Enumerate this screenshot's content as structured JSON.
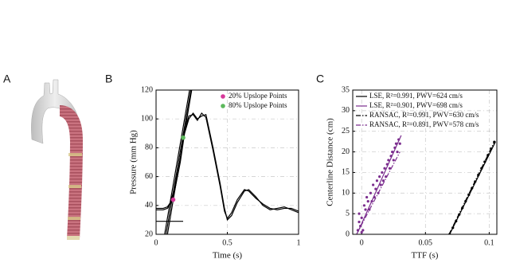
{
  "panels": [
    "A",
    "B",
    "C"
  ],
  "chart_data": [
    {
      "type": "line",
      "x_label": "Time (s)",
      "y_label": "Pressure (mm Hg)",
      "xlim": [
        0,
        1
      ],
      "xticks": [
        0,
        0.5,
        1
      ],
      "ylim": [
        20,
        120
      ],
      "yticks": [
        20,
        40,
        60,
        80,
        100,
        120
      ],
      "grid": true,
      "legend": "upper right",
      "lines": [
        {
          "color": "#000000",
          "x": [
            0,
            0.05,
            0.08,
            0.1,
            0.13,
            0.17,
            0.2,
            0.23,
            0.26,
            0.29,
            0.32,
            0.35,
            0.4,
            0.45,
            0.48,
            0.5,
            0.53,
            0.57,
            0.62,
            0.65,
            0.7,
            0.75,
            0.8,
            0.85,
            0.9,
            0.95,
            1
          ],
          "values": [
            37,
            37,
            38,
            41,
            50,
            70,
            90,
            100,
            104,
            100,
            102,
            103,
            80,
            55,
            38,
            30,
            33,
            42,
            50,
            51,
            46,
            40,
            37,
            38,
            39,
            37,
            35
          ]
        },
        {
          "color": "#000000",
          "x": [
            0,
            0.05,
            0.08,
            0.1,
            0.13,
            0.17,
            0.2,
            0.23,
            0.26,
            0.29,
            0.32,
            0.35,
            0.4,
            0.45,
            0.48,
            0.5,
            0.53,
            0.57,
            0.62,
            0.65,
            0.7,
            0.75,
            0.8,
            0.85,
            0.9,
            0.95,
            1
          ],
          "values": [
            38,
            38,
            39,
            42,
            52,
            72,
            92,
            102,
            103,
            99,
            104,
            101,
            78,
            53,
            36,
            31,
            35,
            44,
            51,
            50,
            45,
            41,
            38,
            37,
            38,
            38,
            36
          ]
        },
        {
          "color": "#000000",
          "x": [
            0.07,
            0.244
          ],
          "values": [
            20,
            120
          ]
        },
        {
          "color": "#000000",
          "x": [
            0.06,
            0.235
          ],
          "values": [
            20,
            120
          ]
        },
        {
          "color": "#000000",
          "x": [
            0.08,
            0.25
          ],
          "values": [
            20,
            120
          ]
        },
        {
          "color": "#000000",
          "x": [
            0,
            0.19
          ],
          "values": [
            29,
            29
          ]
        }
      ],
      "series": [
        {
          "name": "20% Upslope Points",
          "color": "#d6389a",
          "x": [
            0.12
          ],
          "values": [
            44
          ]
        },
        {
          "name": "80% Upslope Points",
          "color": "#5cb85c",
          "x": [
            0.19
          ],
          "values": [
            87
          ]
        }
      ]
    },
    {
      "type": "scatter",
      "x_label": "TTF (s)",
      "y_label": "Centerline Distance (cm)",
      "xlim": [
        -0.007,
        0.106
      ],
      "xticks": [
        0,
        0.05,
        0.1
      ],
      "ylim": [
        0,
        35
      ],
      "yticks": [
        0,
        5,
        10,
        15,
        20,
        25,
        30,
        35
      ],
      "grid": true,
      "legend": "upper left",
      "points": [
        {
          "color": "#000000",
          "x": [
            0.069,
            0.0715,
            0.074,
            0.0765,
            0.079,
            0.0815,
            0.084,
            0.0865,
            0.089,
            0.0915,
            0.094,
            0.0965,
            0.099,
            0.1015,
            0.104
          ],
          "values": [
            0,
            1.6,
            3.2,
            4.8,
            6.4,
            8,
            9.6,
            11.2,
            12.8,
            14.4,
            16,
            17.6,
            19.2,
            20.8,
            22.4
          ]
        },
        {
          "color": "#7b2d8e",
          "x": [
            -0.003,
            -0.002,
            -0.002,
            -0.001,
            0,
            0,
            0.001,
            0.002,
            0.003,
            0.004,
            0.005,
            0.006,
            0.007,
            0.008,
            0.009,
            0.01,
            0.011,
            0.012,
            0.013,
            0.014,
            0.015,
            0.016,
            0.017,
            0.018,
            0.019,
            0.02,
            0.021,
            0.022,
            0.023,
            0.024,
            0.025,
            0.026,
            0.027,
            0.028,
            0.029,
            0.03
          ],
          "values": [
            1,
            5,
            3,
            2,
            0.5,
            4,
            1,
            7,
            6,
            9,
            8,
            6,
            10,
            8,
            12,
            9,
            11,
            13,
            10,
            14,
            12,
            15,
            13,
            16,
            14,
            17,
            18,
            16,
            19,
            20,
            18,
            21,
            22,
            20,
            23,
            22
          ]
        }
      ],
      "series": [
        {
          "name": "LSE, R²=0.991, PWV=624 cm/s",
          "color": "#000000",
          "dash": "solid",
          "x": [
            0.069,
            0.105
          ],
          "values": [
            0,
            22.5
          ]
        },
        {
          "name": "LSE, R²=0.901, PWV=698 cm/s",
          "color": "#7b2d8e",
          "dash": "solid",
          "x": [
            -0.003,
            0.031
          ],
          "values": [
            0.5,
            24
          ]
        },
        {
          "name": "RANSAC, R²=0.991, PWV=630 cm/s",
          "color": "#000000",
          "dash": "dashdot",
          "x": [
            0.0685,
            0.104
          ],
          "values": [
            0,
            22.4
          ]
        },
        {
          "name": "RANSAC, R²=0.891, PWV=578 cm/s",
          "color": "#7b2d8e",
          "dash": "dashdot",
          "x": [
            -0.004,
            0.03
          ],
          "values": [
            0,
            20
          ]
        }
      ]
    }
  ]
}
